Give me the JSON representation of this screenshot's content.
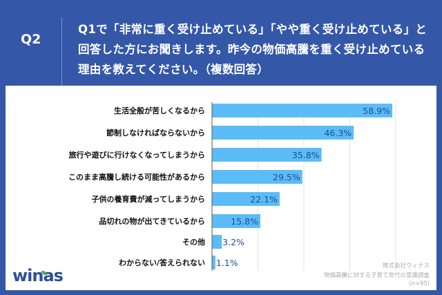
{
  "header": {
    "question_id": "Q2",
    "question_text": "Q1で「非常に重く受け止めている」「やや重く受け止めている」と回答した方にお聞きします。昨今の物価高騰を重く受け止めている理由を教えてください。（複数回答）"
  },
  "footer": {
    "company": "株式会社ウィナス",
    "survey": "物価高騰に対する子育て世代の意識調査",
    "sample": "(n=95)",
    "logo": "winas"
  },
  "colors": {
    "background": "#3457a8",
    "bar": "#5bbcf7",
    "value_label": "#1f4e8c"
  },
  "chart_data": {
    "type": "bar",
    "orientation": "horizontal",
    "categories": [
      "生活全般が苦しくなるから",
      "節制しなければならないから",
      "旅行や遊びに行けなくなってしまうから",
      "このまま高騰し続ける可能性があるから",
      "子供の養育費が減ってしまうから",
      "品切れの物が出てきているから",
      "その他",
      "わからない/答えられない"
    ],
    "values": [
      58.9,
      46.3,
      35.8,
      29.5,
      22.1,
      15.8,
      3.2,
      1.1
    ],
    "value_labels": [
      "58.9%",
      "46.3%",
      "35.8%",
      "29.5%",
      "22.1%",
      "15.8%",
      "3.2%",
      "1.1%"
    ],
    "unit": "%",
    "xlim": [
      0,
      60
    ],
    "grid": true,
    "grid_step": 15
  }
}
